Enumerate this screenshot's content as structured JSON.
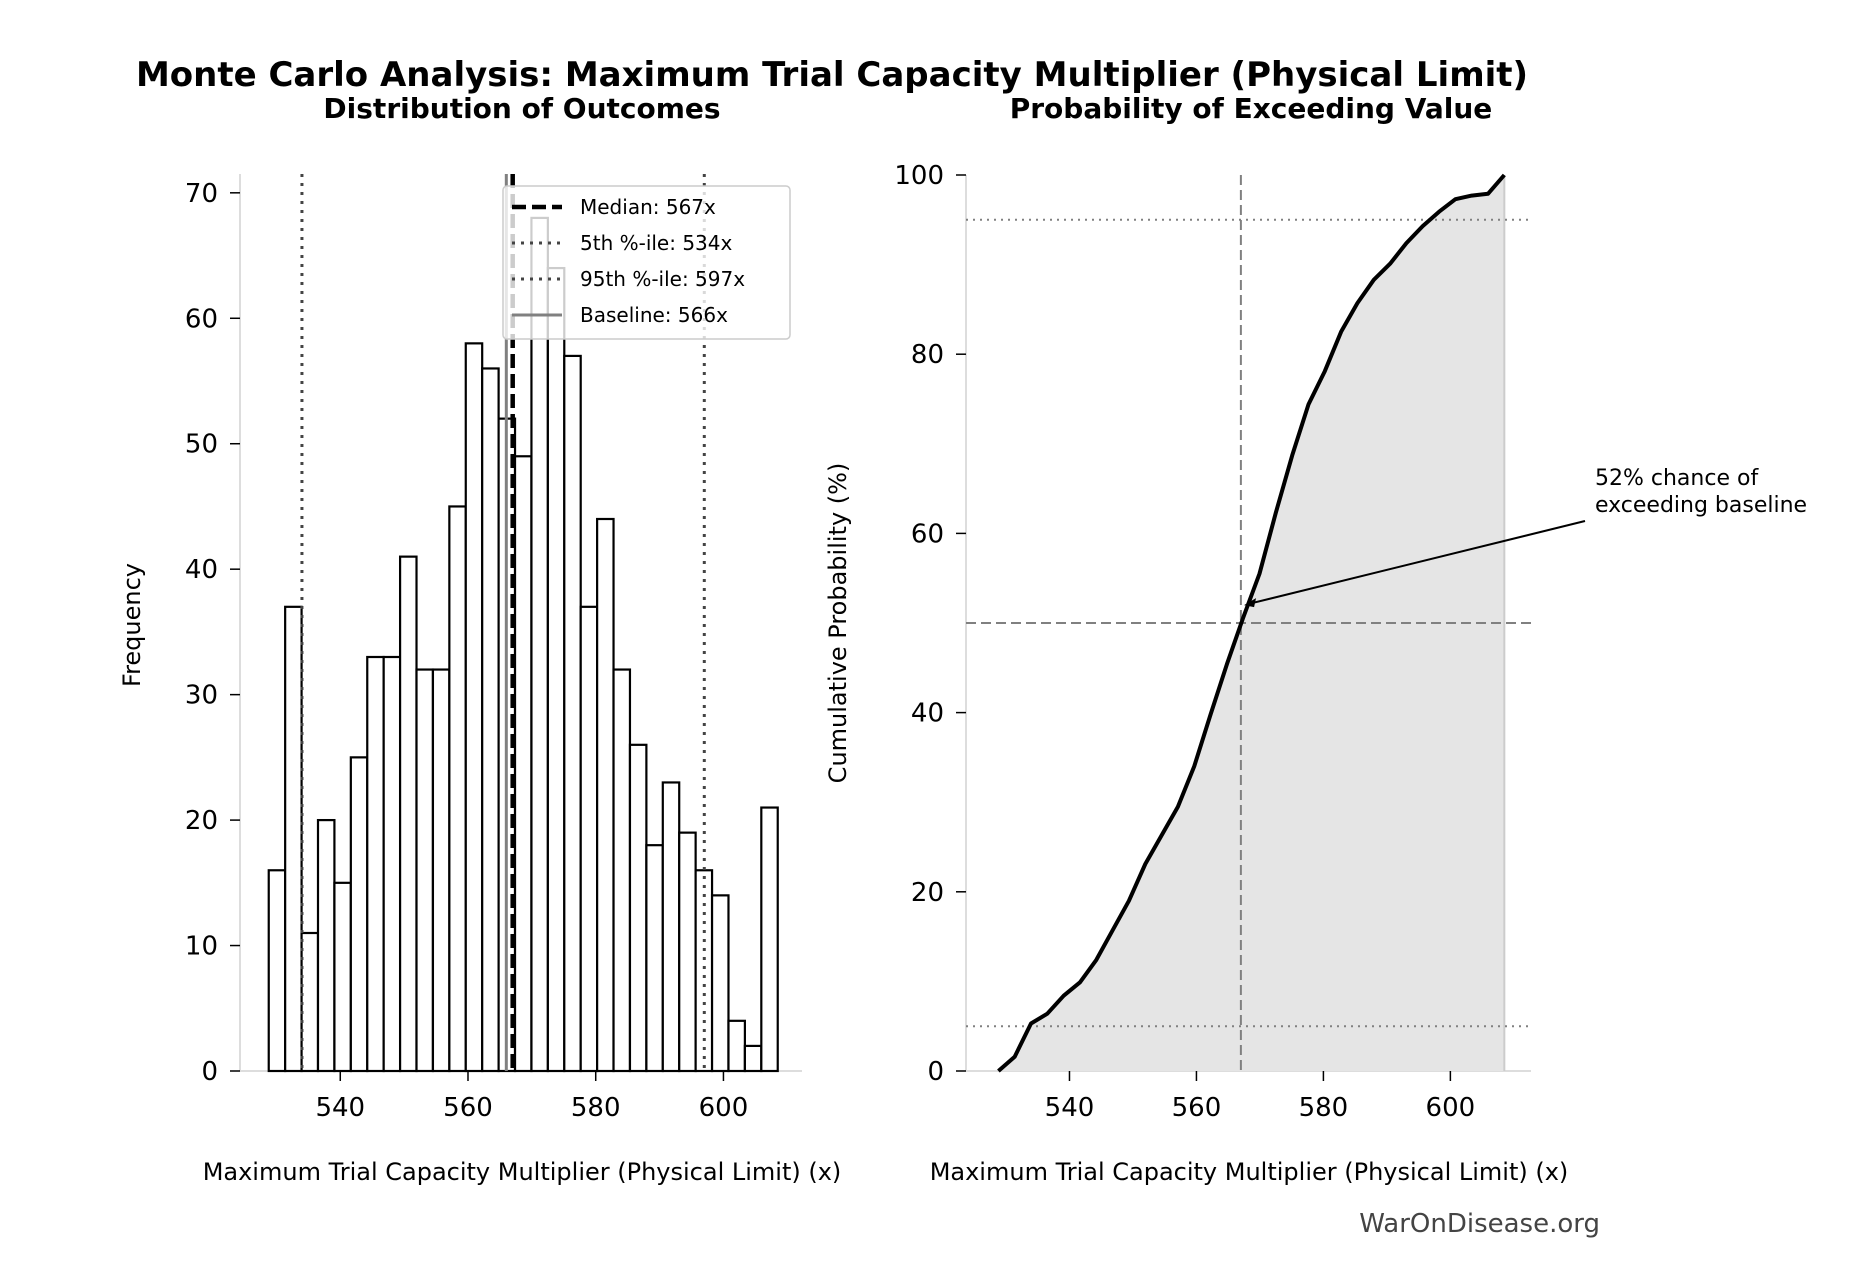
{
  "title": "Monte Carlo Analysis: Maximum Trial Capacity Multiplier (Physical Limit)",
  "watermark": "WarOnDisease.org",
  "chart_data": [
    {
      "type": "bar",
      "subtitle": "Distribution of Outcomes",
      "xlabel": "Maximum Trial Capacity Multiplier (Physical Limit) (x)",
      "ylabel": "Frequency",
      "bin_range": [
        528.8,
        608.5
      ],
      "counts": [
        16,
        37,
        11,
        20,
        15,
        25,
        33,
        33,
        41,
        32,
        32,
        45,
        58,
        56,
        52,
        49,
        68,
        64,
        57,
        37,
        44,
        32,
        26,
        18,
        23,
        19,
        16,
        14,
        4,
        2,
        21
      ],
      "xlim": [
        524.3,
        612.3
      ],
      "ylim": [
        0,
        71.5
      ],
      "xticks": [
        540,
        560,
        580,
        600
      ],
      "yticks": [
        0,
        10,
        20,
        30,
        40,
        50,
        60,
        70
      ],
      "grid": false,
      "legend_placement": "upper right",
      "lines": [
        {
          "label": "Median: 567x",
          "x": 567,
          "style": "dashed",
          "color": "#000000"
        },
        {
          "label": "5th %-ile: 534x",
          "x": 534,
          "style": "dotted",
          "color": "#444444"
        },
        {
          "label": "95th %-ile: 597x",
          "x": 597,
          "style": "dotted",
          "color": "#444444"
        },
        {
          "label": "Baseline: 566x",
          "x": 566,
          "style": "solid",
          "color": "#808080"
        }
      ]
    },
    {
      "type": "area",
      "subtitle": "Probability of Exceeding Value",
      "xlabel": "Maximum Trial Capacity Multiplier (Physical Limit) (x)",
      "ylabel": "Cumulative Probability (%)",
      "xlim": [
        523.7,
        612.7
      ],
      "ylim": [
        0,
        100
      ],
      "xticks": [
        540,
        560,
        580,
        600
      ],
      "yticks": [
        0,
        20,
        40,
        60,
        80,
        100
      ],
      "grid": false,
      "fill_color": "#e5e5e5",
      "reference_lines": {
        "median_x": 567,
        "hlines": [
          5,
          50,
          95
        ]
      },
      "annotation": {
        "text_line1": "52% chance of",
        "text_line2": "exceeding baseline",
        "point": [
          567.5,
          52
        ]
      }
    }
  ]
}
